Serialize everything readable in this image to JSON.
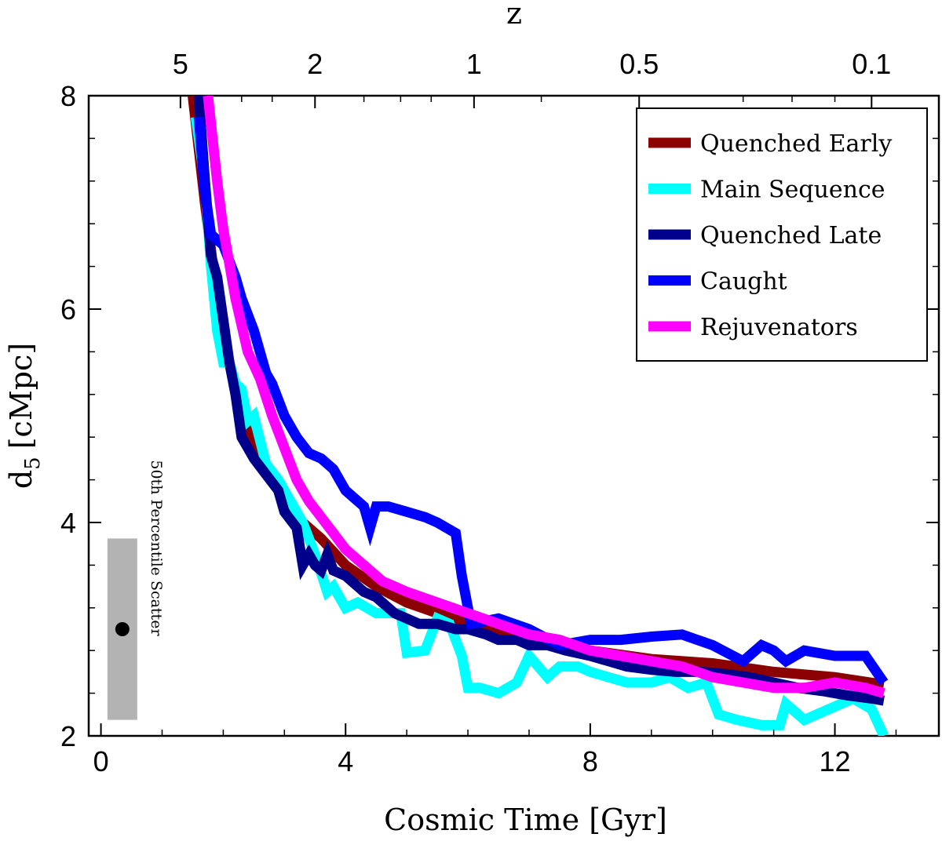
{
  "chart_data": {
    "type": "line",
    "xlabel": "Cosmic Time [Gyr]",
    "ylabel": "d",
    "ylabel_sub": "5",
    "ylabel_unit": "[cMpc]",
    "top_label": "z",
    "xlim": [
      -0.2,
      13.7
    ],
    "ylim": [
      2,
      8
    ],
    "x_ticks": [
      0,
      4,
      8,
      12
    ],
    "x_tick_labels": [
      "0",
      "4",
      "8",
      "12"
    ],
    "y_ticks": [
      2,
      4,
      6,
      8
    ],
    "y_tick_labels": [
      "2",
      "4",
      "6",
      "8"
    ],
    "top_ticks": [
      {
        "t": 1.3,
        "label": "5"
      },
      {
        "t": 3.5,
        "label": "2"
      },
      {
        "t": 6.1,
        "label": "1"
      },
      {
        "t": 8.8,
        "label": "0.5"
      },
      {
        "t": 12.6,
        "label": "0.1"
      }
    ],
    "legend_position": "top-right",
    "series": [
      {
        "name": "Quenched Early",
        "color": "#8b0000",
        "x": [
          1.5,
          1.7,
          1.9,
          2.1,
          2.3,
          2.5,
          2.7,
          3.0,
          3.3,
          3.6,
          4.0,
          4.5,
          5.0,
          5.5,
          6.0,
          6.5,
          7.0,
          8.0,
          9.0,
          10.0,
          11.0,
          12.0,
          12.8
        ],
        "y": [
          8.0,
          7.0,
          6.1,
          5.5,
          5.0,
          4.7,
          4.5,
          4.25,
          4.0,
          3.85,
          3.6,
          3.4,
          3.25,
          3.15,
          3.05,
          2.95,
          2.9,
          2.8,
          2.72,
          2.68,
          2.6,
          2.55,
          2.48
        ]
      },
      {
        "name": "Main Sequence",
        "color": "#00ffff",
        "x": [
          1.55,
          1.7,
          1.8,
          1.9,
          2.0,
          2.1,
          2.2,
          2.3,
          2.4,
          2.5,
          2.7,
          2.9,
          3.1,
          3.3,
          3.5,
          3.7,
          3.8,
          4.0,
          4.2,
          4.5,
          4.9,
          5.0,
          5.3,
          5.5,
          5.7,
          5.9,
          6.0,
          6.2,
          6.5,
          6.8,
          7.0,
          7.3,
          7.5,
          7.8,
          8.0,
          8.3,
          8.6,
          9.0,
          9.3,
          9.6,
          9.9,
          10.1,
          10.4,
          10.8,
          11.1,
          11.2,
          11.5,
          11.9,
          12.3,
          12.6,
          12.8
        ],
        "y": [
          7.8,
          7.2,
          6.4,
          5.8,
          5.5,
          5.5,
          5.3,
          5.25,
          4.95,
          5.0,
          4.55,
          4.4,
          4.2,
          4.0,
          3.7,
          3.35,
          3.4,
          3.2,
          3.25,
          3.15,
          3.15,
          2.78,
          2.8,
          3.1,
          3.05,
          2.75,
          2.45,
          2.45,
          2.4,
          2.5,
          2.75,
          2.55,
          2.65,
          2.65,
          2.6,
          2.55,
          2.5,
          2.5,
          2.55,
          2.45,
          2.5,
          2.2,
          2.15,
          2.1,
          2.1,
          2.3,
          2.15,
          2.25,
          2.35,
          2.25,
          2.0
        ]
      },
      {
        "name": "Quenched Late",
        "color": "#00008b",
        "x": [
          1.6,
          1.7,
          1.8,
          1.9,
          2.0,
          2.1,
          2.2,
          2.3,
          2.4,
          2.5,
          2.7,
          2.9,
          3.0,
          3.2,
          3.3,
          3.4,
          3.5,
          3.6,
          3.7,
          3.8,
          4.0,
          4.2,
          4.3,
          4.5,
          4.8,
          5.0,
          5.2,
          5.5,
          5.8,
          6.0,
          6.3,
          6.5,
          6.8,
          7.0,
          7.3,
          7.6,
          8.0,
          8.3,
          8.6,
          9.0,
          9.4,
          9.8,
          10.2,
          10.6,
          11.0,
          11.4,
          11.8,
          12.2,
          12.6,
          12.8
        ],
        "y": [
          8.0,
          7.2,
          6.5,
          6.3,
          5.9,
          5.5,
          5.2,
          4.8,
          4.7,
          4.6,
          4.45,
          4.3,
          4.1,
          3.95,
          3.6,
          3.7,
          3.6,
          3.55,
          3.7,
          3.55,
          3.5,
          3.4,
          3.35,
          3.3,
          3.15,
          3.1,
          3.05,
          3.05,
          3.0,
          3.0,
          2.95,
          2.9,
          2.9,
          2.85,
          2.85,
          2.8,
          2.75,
          2.7,
          2.65,
          2.62,
          2.6,
          2.6,
          2.58,
          2.55,
          2.5,
          2.45,
          2.42,
          2.38,
          2.35,
          2.33
        ]
      },
      {
        "name": "Caught",
        "color": "#0000ff",
        "x": [
          1.6,
          1.7,
          1.8,
          1.9,
          2.0,
          2.2,
          2.3,
          2.5,
          2.7,
          2.8,
          3.0,
          3.2,
          3.4,
          3.6,
          3.8,
          4.0,
          4.2,
          4.3,
          4.4,
          4.5,
          4.7,
          5.0,
          5.3,
          5.5,
          5.8,
          5.9,
          6.0,
          6.05,
          6.5,
          7.0,
          7.5,
          8.0,
          8.5,
          9.0,
          9.5,
          10.0,
          10.5,
          10.8,
          11.0,
          11.2,
          11.5,
          12.0,
          12.5,
          12.8
        ],
        "y": [
          7.8,
          7.1,
          6.7,
          6.65,
          6.6,
          6.3,
          6.1,
          5.8,
          5.4,
          5.3,
          5.0,
          4.8,
          4.65,
          4.6,
          4.5,
          4.3,
          4.2,
          4.15,
          3.95,
          4.15,
          4.15,
          4.1,
          4.05,
          4.0,
          3.9,
          3.5,
          3.2,
          3.05,
          3.1,
          3.0,
          2.85,
          2.9,
          2.9,
          2.93,
          2.95,
          2.85,
          2.7,
          2.85,
          2.8,
          2.7,
          2.8,
          2.75,
          2.75,
          2.5
        ]
      },
      {
        "name": "Rejuvenators",
        "color": "#ff00ff",
        "x": [
          1.75,
          1.9,
          2.0,
          2.2,
          2.4,
          2.6,
          2.8,
          3.0,
          3.2,
          3.4,
          3.6,
          3.8,
          4.0,
          4.3,
          4.6,
          5.0,
          5.5,
          6.0,
          6.5,
          7.0,
          7.5,
          8.0,
          8.5,
          9.0,
          9.5,
          10.0,
          10.5,
          11.0,
          11.5,
          12.0,
          12.5,
          12.8
        ],
        "y": [
          8.0,
          7.2,
          6.75,
          6.1,
          5.6,
          5.35,
          5.0,
          4.7,
          4.4,
          4.2,
          4.05,
          3.9,
          3.75,
          3.6,
          3.45,
          3.35,
          3.25,
          3.15,
          3.05,
          2.95,
          2.9,
          2.8,
          2.75,
          2.7,
          2.65,
          2.55,
          2.5,
          2.45,
          2.45,
          2.5,
          2.45,
          2.4
        ]
      }
    ],
    "scatter_indicator": {
      "label": "50th Percentile Scatter",
      "x": 0.35,
      "y": 3.0,
      "y_low": 2.15,
      "y_high": 3.85,
      "color": "#b3b3b3"
    }
  }
}
